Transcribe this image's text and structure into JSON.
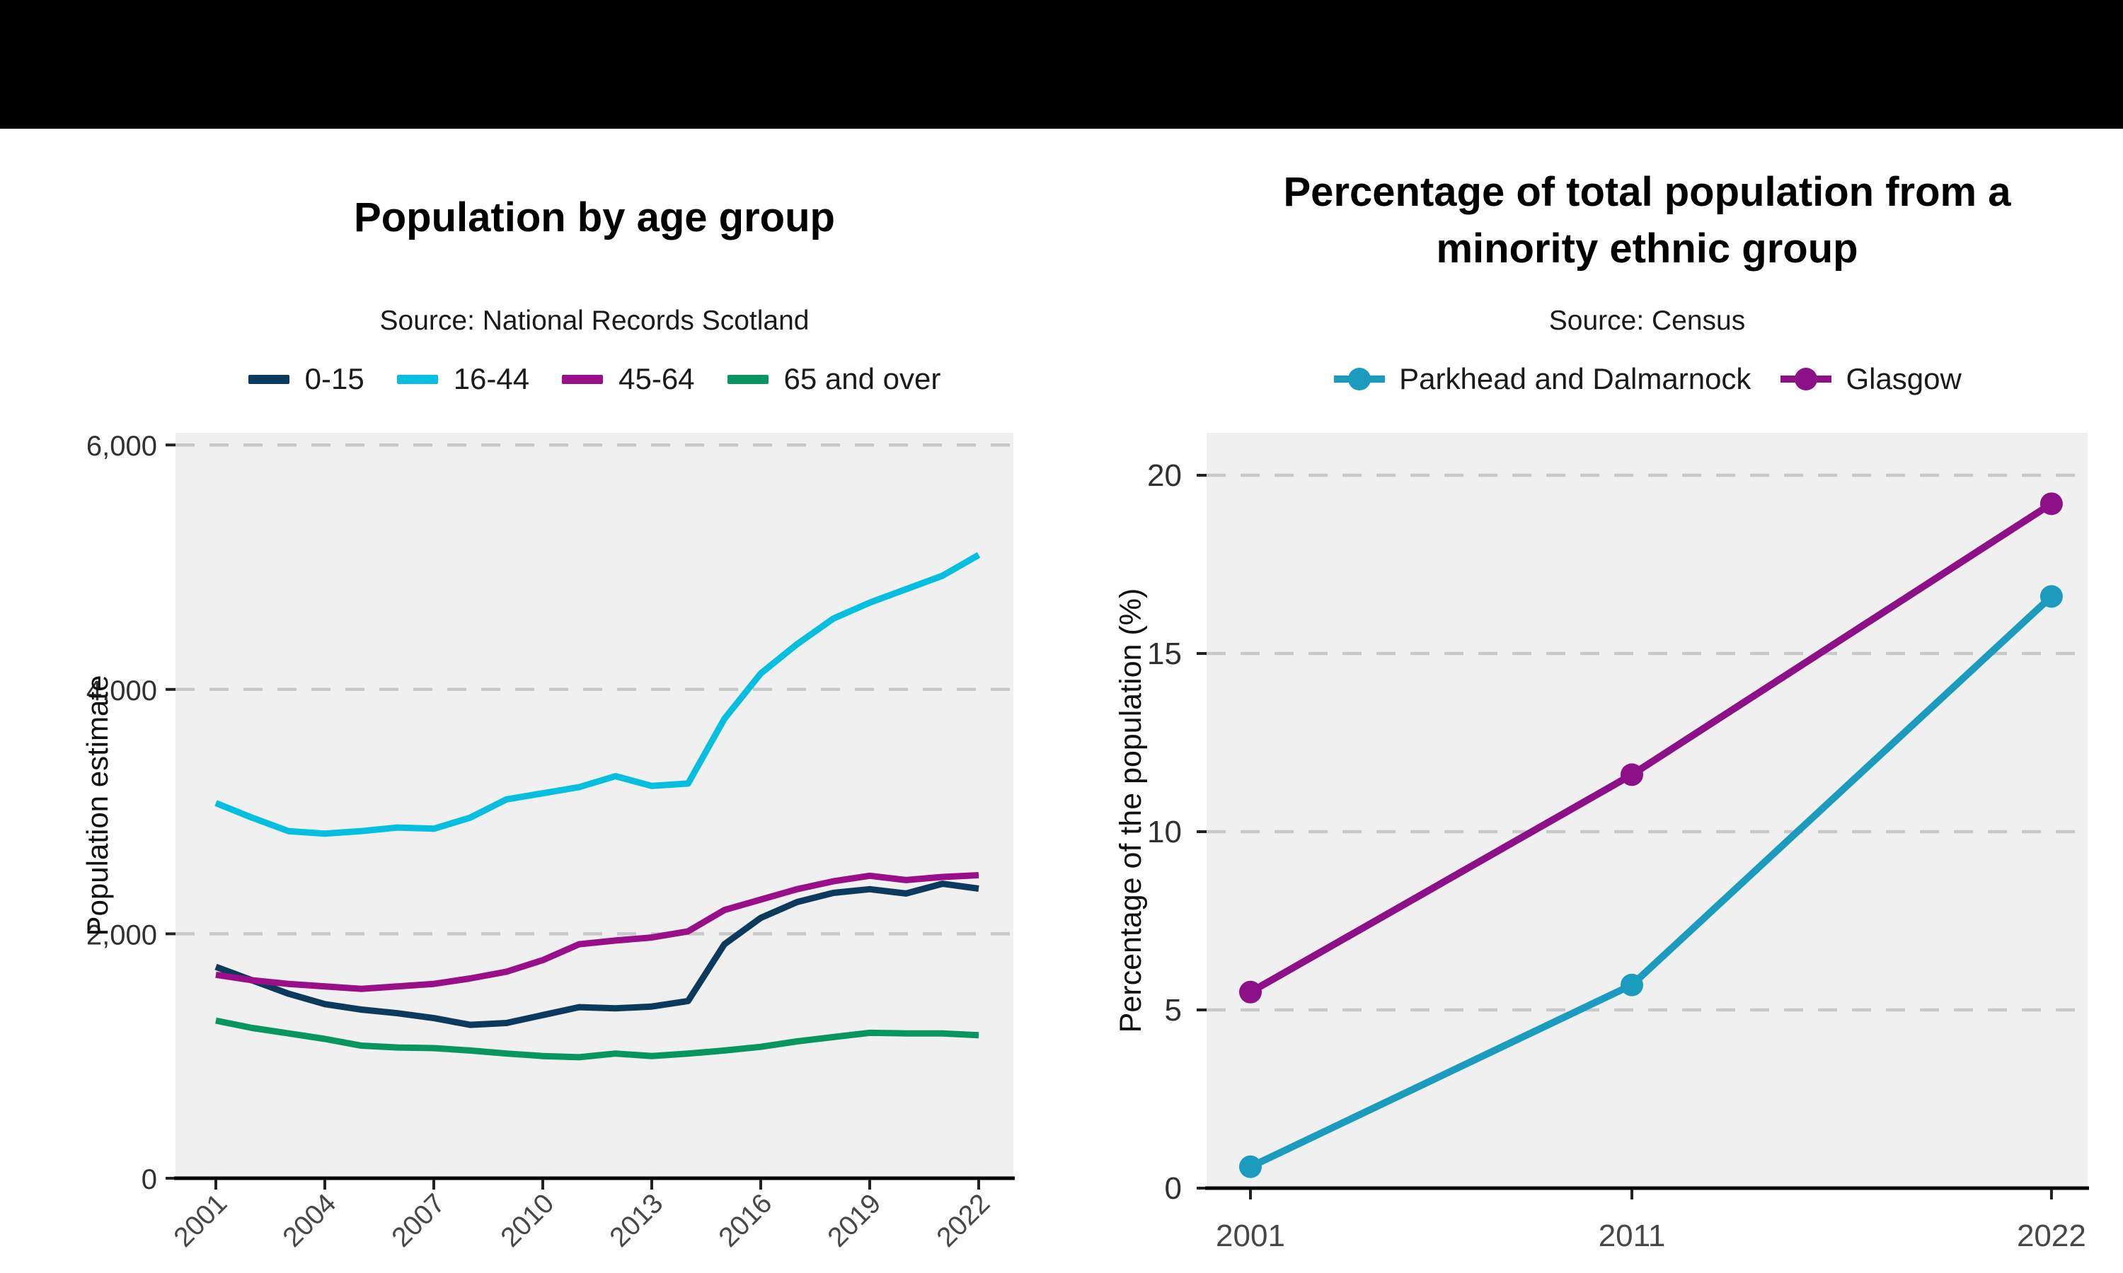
{
  "top_bar": {
    "color": "#000000"
  },
  "page_background": "#ffffff",
  "panel_background": "#f0f0f0",
  "gridline_color": "#c8c8c8",
  "axis_line_color": "#000000",
  "tick_color": "#222222",
  "axis_text_color": "#303030",
  "x_year_label_color": "#474747",
  "chart_data": [
    {
      "type": "line",
      "title": "Population by age group",
      "subtitle": "Source: National Records Scotland",
      "xlabel": "",
      "ylabel": "Population estimate",
      "x": [
        2001,
        2002,
        2003,
        2004,
        2005,
        2006,
        2007,
        2008,
        2009,
        2010,
        2011,
        2012,
        2013,
        2014,
        2015,
        2016,
        2017,
        2018,
        2019,
        2020,
        2021,
        2022
      ],
      "x_ticks": [
        2001,
        2004,
        2007,
        2010,
        2013,
        2016,
        2019,
        2022
      ],
      "x_tick_rotation": -45,
      "y_ticks": [
        0,
        2000,
        4000,
        6000
      ],
      "y_tick_labels": [
        "0",
        "2,000",
        "4,000",
        "6,000"
      ],
      "ylim": [
        0,
        6100
      ],
      "grid": "horizontal-dashed",
      "legend_position": "top",
      "markers": false,
      "series": [
        {
          "name": "0-15",
          "color": "#0b3a5d",
          "values": [
            1730,
            1620,
            1510,
            1425,
            1380,
            1350,
            1310,
            1255,
            1270,
            1335,
            1400,
            1390,
            1405,
            1450,
            1915,
            2130,
            2260,
            2335,
            2365,
            2330,
            2410,
            2370
          ]
        },
        {
          "name": "16-44",
          "color": "#04bfdf",
          "values": [
            3070,
            2950,
            2840,
            2820,
            2840,
            2870,
            2860,
            2950,
            3100,
            3150,
            3200,
            3290,
            3210,
            3230,
            3760,
            4130,
            4370,
            4580,
            4710,
            4820,
            4930,
            5100
          ]
        },
        {
          "name": "45-64",
          "color": "#990f89",
          "values": [
            1665,
            1620,
            1590,
            1570,
            1550,
            1570,
            1590,
            1635,
            1690,
            1785,
            1915,
            1945,
            1970,
            2020,
            2195,
            2280,
            2365,
            2430,
            2475,
            2440,
            2465,
            2480
          ]
        },
        {
          "name": "65 and over",
          "color": "#089660",
          "values": [
            1290,
            1230,
            1185,
            1140,
            1085,
            1070,
            1065,
            1045,
            1020,
            1000,
            990,
            1020,
            1000,
            1020,
            1045,
            1075,
            1120,
            1155,
            1190,
            1185,
            1185,
            1170
          ]
        }
      ]
    },
    {
      "type": "line",
      "title": "Percentage of total population from a minority ethnic group",
      "title_lines": [
        "Percentage of total population from a",
        "minority ethnic group"
      ],
      "subtitle": "Source: Census",
      "xlabel": "",
      "ylabel": "Percentage of the population (%)",
      "x": [
        2001,
        2011,
        2022
      ],
      "x_ticks": [
        2001,
        2011,
        2022
      ],
      "x_tick_rotation": 0,
      "y_ticks": [
        0,
        5,
        10,
        15,
        20
      ],
      "y_tick_labels": [
        "0",
        "5",
        "10",
        "15",
        "20"
      ],
      "ylim": [
        0,
        21.2
      ],
      "grid": "horizontal-dashed",
      "legend_position": "top",
      "markers": true,
      "series": [
        {
          "name": "Parkhead and Dalmarnock",
          "color": "#1b9cbf",
          "values": [
            0.6,
            5.7,
            16.6
          ]
        },
        {
          "name": "Glasgow",
          "color": "#8d1089",
          "values": [
            5.5,
            11.6,
            19.2
          ]
        }
      ]
    }
  ]
}
